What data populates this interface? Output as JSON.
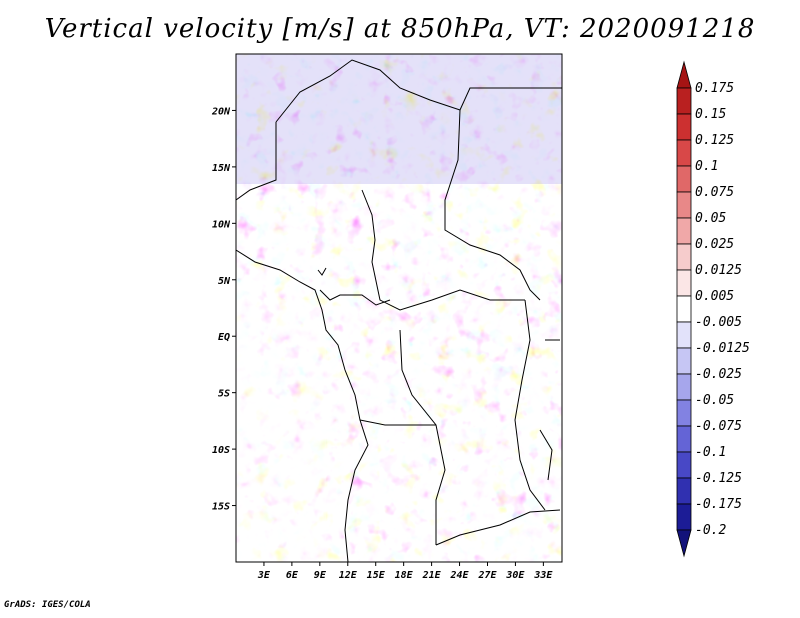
{
  "title": "Vertical velocity [m/s] at 850hPa, VT: 2020091218",
  "credit": "GrADS: IGES/COLA",
  "map": {
    "lat_labels": [
      "20N",
      "15N",
      "10N",
      "5N",
      "EQ",
      "5S",
      "10S",
      "15S"
    ],
    "lat_values": [
      20,
      15,
      10,
      5,
      0,
      -5,
      -10,
      -15
    ],
    "lon_labels": [
      "3E",
      "6E",
      "9E",
      "12E",
      "15E",
      "18E",
      "21E",
      "24E",
      "27E",
      "30E",
      "33E"
    ],
    "lon_values": [
      3,
      6,
      9,
      12,
      15,
      18,
      21,
      24,
      27,
      30,
      33
    ],
    "lat_range": [
      -20,
      25
    ],
    "lon_range": [
      0,
      35
    ]
  },
  "colorbar": {
    "levels": [
      "0.175",
      "0.15",
      "0.125",
      "0.1",
      "0.075",
      "0.05",
      "0.025",
      "0.0125",
      "0.005",
      "-0.005",
      "-0.0125",
      "-0.025",
      "-0.05",
      "-0.075",
      "-0.1",
      "-0.125",
      "-0.175",
      "-0.2"
    ],
    "colors": [
      "#a51414",
      "#b92020",
      "#cc3030",
      "#d84848",
      "#e06868",
      "#e88888",
      "#f0a8a8",
      "#f6cccc",
      "#fbe6e6",
      "#ffffff",
      "#e2e2fa",
      "#c6c6f4",
      "#a6a6ec",
      "#8282e2",
      "#6464d6",
      "#4848c6",
      "#3030b0",
      "#1c1c96",
      "#12127a"
    ]
  }
}
